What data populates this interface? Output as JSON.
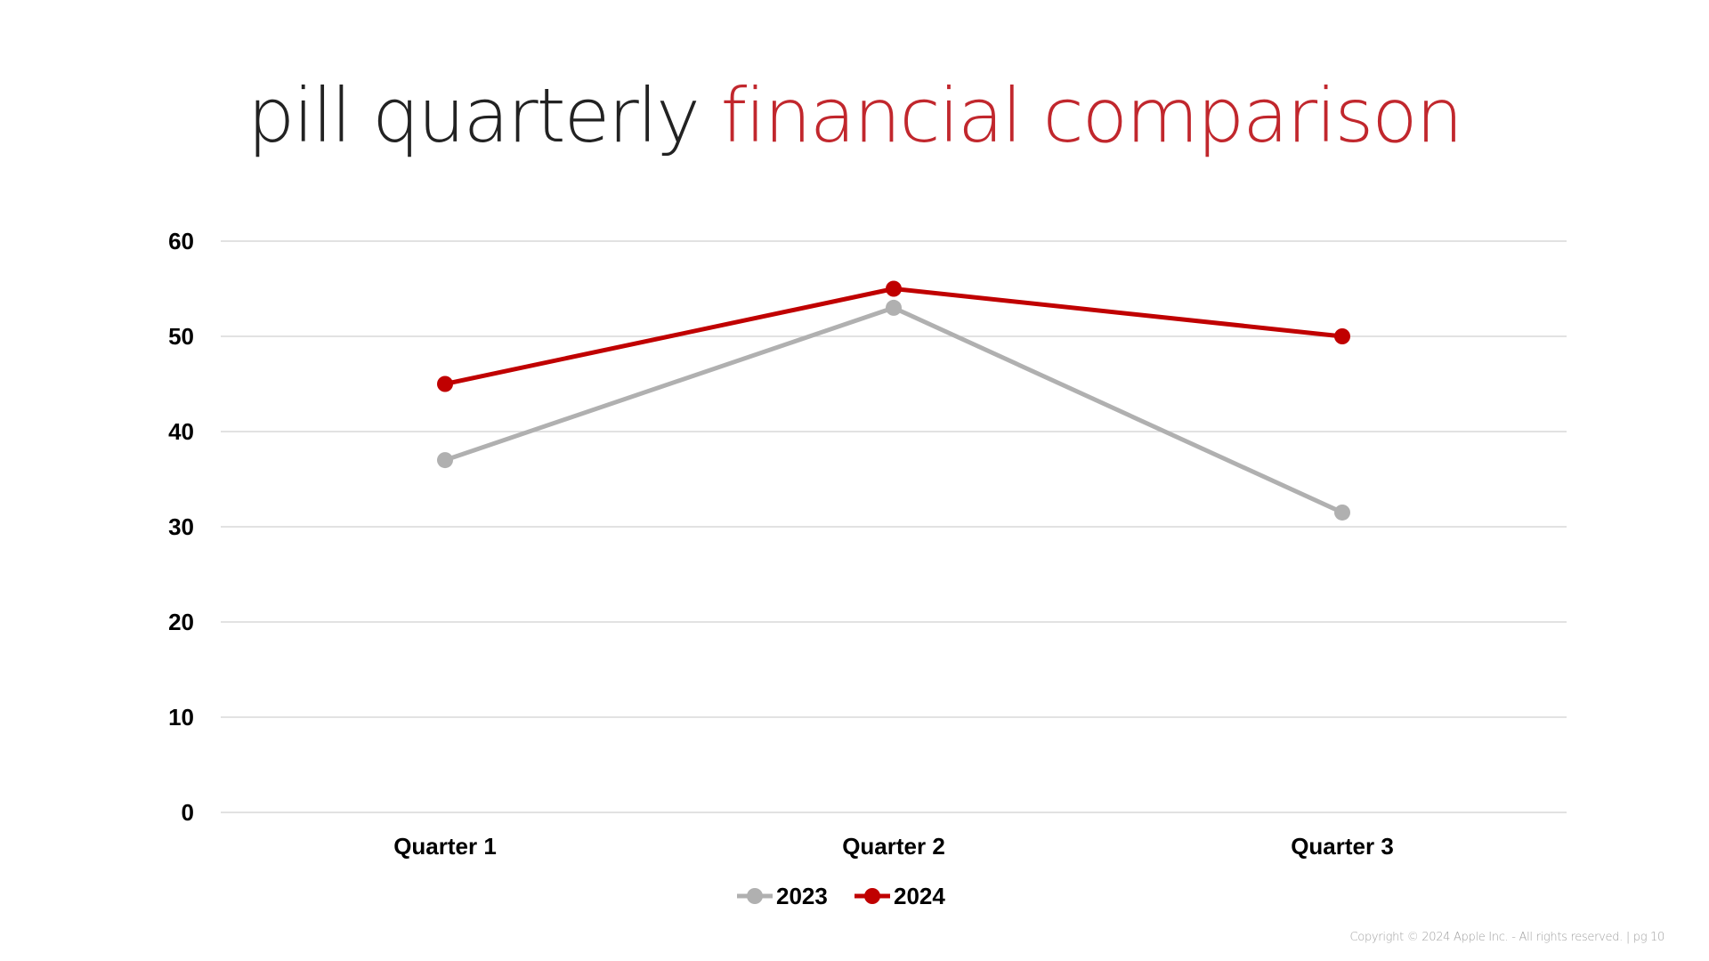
{
  "slide": {
    "title_part1": "pill quarterly ",
    "title_part2": "financial comparison",
    "copyright": "Copyright © 2024 Apple Inc. - All rights reserved. | pg 10"
  },
  "colors": {
    "accent_red": "#c00000",
    "series_gray": "#b0b0b0",
    "gridline": "#d9d9d9",
    "title_dark": "#222222",
    "title_red": "#c1272d"
  },
  "chart_data": {
    "type": "line",
    "categories": [
      "Quarter 1",
      "Quarter 2",
      "Quarter 3"
    ],
    "series": [
      {
        "name": "2023",
        "values": [
          37,
          53,
          31.5
        ],
        "color": "#b0b0b0"
      },
      {
        "name": "2024",
        "values": [
          45,
          55,
          50
        ],
        "color": "#c00000"
      }
    ],
    "ylim": [
      0,
      60
    ],
    "yticks": [
      0,
      10,
      20,
      30,
      40,
      50,
      60
    ],
    "grid": true,
    "legend_position": "bottom-center",
    "title": "pill quarterly financial comparison",
    "xlabel": "",
    "ylabel": ""
  }
}
